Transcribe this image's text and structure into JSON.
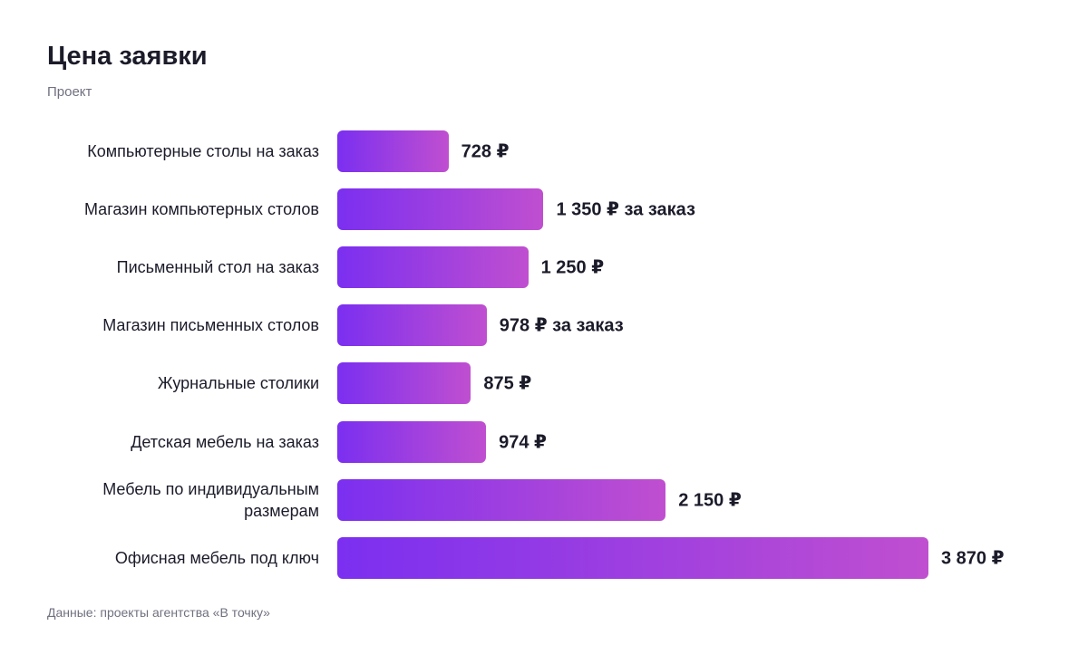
{
  "chart_data": {
    "type": "bar",
    "orientation": "horizontal",
    "title": "Цена заявки",
    "subtitle": "Проект",
    "categories": [
      "Компьютерные столы на заказ",
      "Магазин компьютерных столов",
      "Письменный стол на заказ",
      "Магазин письменных столов",
      "Журнальные столики",
      "Детская мебель на заказ",
      "Мебель по индивидуальным размерам",
      "Офисная мебель под ключ"
    ],
    "values": [
      728,
      1350,
      1250,
      978,
      875,
      974,
      2150,
      3870
    ],
    "value_labels": [
      "728 ₽",
      "1 350 ₽ за заказ",
      "1 250 ₽",
      "978 ₽ за заказ",
      "875 ₽",
      "974 ₽",
      "2 150 ₽",
      "3 870 ₽"
    ],
    "color": [
      "#7b2ff0",
      "#c04fd0"
    ],
    "source": "Данные: проекты агентства «В точку»"
  }
}
